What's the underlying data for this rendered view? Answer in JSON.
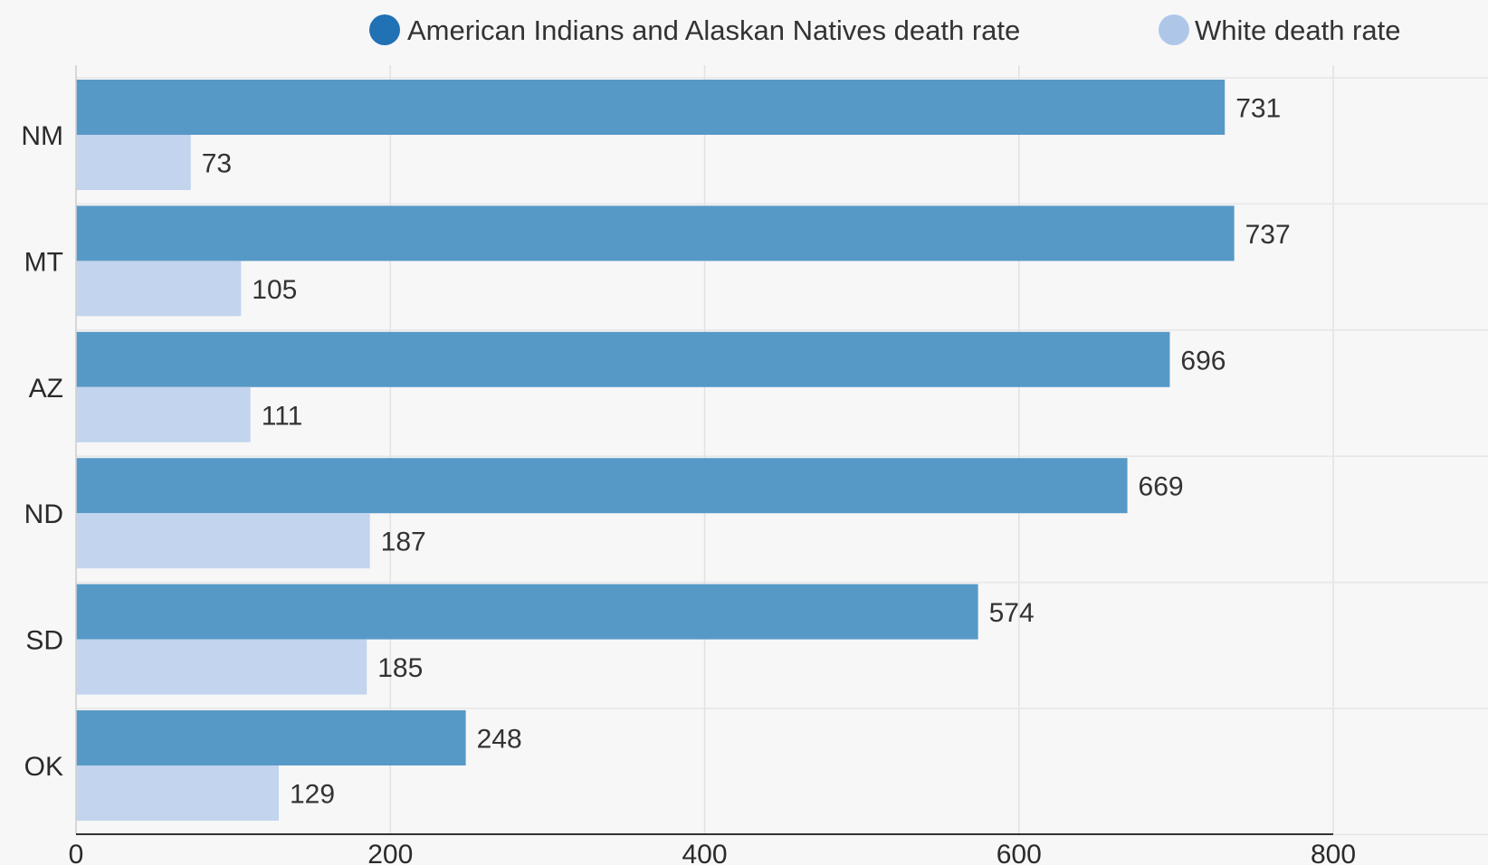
{
  "chart_data": {
    "type": "bar",
    "orientation": "horizontal",
    "categories": [
      "NM",
      "MT",
      "AZ",
      "ND",
      "SD",
      "OK"
    ],
    "series": [
      {
        "name": "American Indians and Alaskan Natives death rate",
        "values": [
          731,
          737,
          696,
          669,
          574,
          248
        ],
        "color": "#5799c6",
        "legend_color": "#2171b5"
      },
      {
        "name": "White death rate",
        "values": [
          73,
          105,
          111,
          187,
          185,
          129
        ],
        "color": "#c2d4ee",
        "legend_color": "#aec7e8"
      }
    ],
    "xlim": [
      0,
      800
    ],
    "xticks": [
      "0",
      "200",
      "400",
      "600",
      "800"
    ],
    "title": "",
    "xlabel": "",
    "ylabel": "",
    "grid": true,
    "legend_position": "top-right",
    "show_data_labels": true
  }
}
